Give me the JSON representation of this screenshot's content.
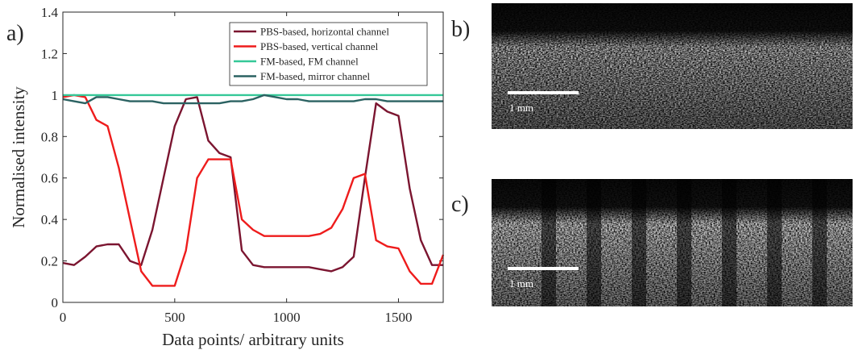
{
  "chart_data": {
    "type": "line",
    "panel_label": "a)",
    "x_label": "Data points/ arbitrary units",
    "y_label": "Normalised intensity",
    "x": [
      0,
      50,
      100,
      150,
      200,
      250,
      300,
      350,
      400,
      450,
      500,
      550,
      600,
      650,
      700,
      750,
      800,
      850,
      900,
      950,
      1000,
      1050,
      1100,
      1150,
      1200,
      1250,
      1300,
      1350,
      1400,
      1450,
      1500,
      1550,
      1600,
      1650,
      1700
    ],
    "series": [
      {
        "name": "PBS-based, horizontal channel",
        "color": "#7b1530",
        "values": [
          0.19,
          0.18,
          0.22,
          0.27,
          0.28,
          0.28,
          0.2,
          0.18,
          0.35,
          0.6,
          0.85,
          0.98,
          0.99,
          0.78,
          0.72,
          0.7,
          0.25,
          0.18,
          0.17,
          0.17,
          0.17,
          0.17,
          0.17,
          0.16,
          0.15,
          0.17,
          0.22,
          0.6,
          0.96,
          0.92,
          0.9,
          0.55,
          0.3,
          0.18,
          0.18
        ]
      },
      {
        "name": "PBS-based, vertical channel",
        "color": "#ee1c1c",
        "values": [
          0.99,
          1.0,
          0.99,
          0.88,
          0.85,
          0.65,
          0.4,
          0.15,
          0.08,
          0.08,
          0.08,
          0.25,
          0.6,
          0.69,
          0.69,
          0.69,
          0.4,
          0.35,
          0.32,
          0.32,
          0.32,
          0.32,
          0.32,
          0.33,
          0.36,
          0.45,
          0.6,
          0.62,
          0.3,
          0.27,
          0.26,
          0.15,
          0.09,
          0.09,
          0.23
        ]
      },
      {
        "name": "FM-based, FM channel",
        "color": "#35c898",
        "values": [
          1,
          1,
          1,
          1,
          1,
          1,
          1,
          1,
          1,
          1,
          1,
          1,
          1,
          1,
          1,
          1,
          1,
          1,
          1,
          1,
          1,
          1,
          1,
          1,
          1,
          1,
          1,
          1,
          1,
          1,
          1,
          1,
          1,
          1,
          1
        ]
      },
      {
        "name": "FM-based, mirror channel",
        "color": "#2b6262",
        "values": [
          0.98,
          0.97,
          0.96,
          0.99,
          0.99,
          0.98,
          0.97,
          0.97,
          0.97,
          0.96,
          0.96,
          0.96,
          0.96,
          0.96,
          0.96,
          0.97,
          0.97,
          0.98,
          1.0,
          0.99,
          0.98,
          0.98,
          0.97,
          0.97,
          0.97,
          0.97,
          0.97,
          0.98,
          0.98,
          0.97,
          0.97,
          0.97,
          0.97,
          0.97,
          0.97
        ]
      }
    ],
    "xlim": [
      0,
      1700
    ],
    "xticks": [
      0,
      500,
      1000,
      1500
    ],
    "ylim": [
      0,
      1.4
    ],
    "yticks": [
      0,
      0.2,
      0.4,
      0.6,
      0.8,
      1,
      1.2,
      1.4
    ],
    "legend": "upper right"
  },
  "images": [
    {
      "label": "b)",
      "scale_bar": "1 mm"
    },
    {
      "label": "c)",
      "scale_bar": "1 mm"
    }
  ]
}
